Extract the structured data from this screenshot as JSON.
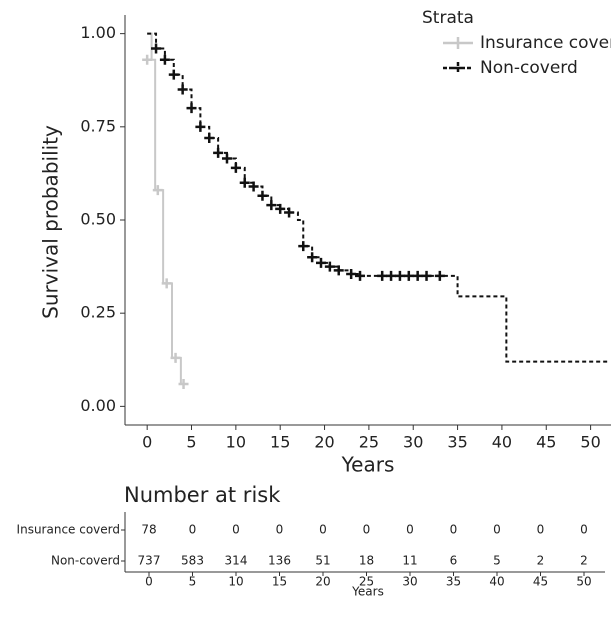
{
  "chart_data": {
    "type": "step",
    "y_label": "Survival probability",
    "x_label": "Years",
    "legend_title": "Strata",
    "legend": "top-right",
    "xlim": [
      -2.5,
      52.3
    ],
    "ylim": [
      -0.05,
      1.05
    ],
    "xticks": [
      0,
      5,
      10,
      15,
      20,
      25,
      30,
      35,
      40,
      45,
      50
    ],
    "yticks": [
      {
        "value": 0,
        "label": "0.00"
      },
      {
        "value": 0.25,
        "label": "0.25"
      },
      {
        "value": 0.5,
        "label": "0.50"
      },
      {
        "value": 0.75,
        "label": "0.75"
      },
      {
        "value": 1,
        "label": "1.00"
      }
    ],
    "series": [
      {
        "name": "Insurance coverd",
        "color": "#c8c8c8",
        "dashed": false,
        "x": [
          0,
          0.5,
          0.9,
          1.8,
          2.8,
          3.8
        ],
        "values": [
          1.0,
          0.93,
          0.58,
          0.33,
          0.13,
          0.06
        ],
        "censored_x": [
          0,
          1.2,
          2.2,
          3.2,
          4.1
        ],
        "censored_y": [
          0.93,
          0.58,
          0.33,
          0.13,
          0.06
        ]
      },
      {
        "name": "Non-coverd",
        "color": "#111111",
        "dashed": true,
        "x": [
          0,
          1,
          2,
          3,
          4,
          5,
          6,
          7,
          8,
          9,
          10,
          11,
          12,
          13,
          14,
          15,
          16,
          17,
          17.6,
          18.6,
          19.6,
          20.6,
          21.6,
          23,
          24,
          35,
          40.5,
          52
        ],
        "values": [
          1.0,
          0.96,
          0.93,
          0.89,
          0.85,
          0.8,
          0.75,
          0.72,
          0.68,
          0.665,
          0.64,
          0.6,
          0.59,
          0.565,
          0.54,
          0.53,
          0.52,
          0.5,
          0.43,
          0.4,
          0.385,
          0.375,
          0.365,
          0.355,
          0.35,
          0.295,
          0.12,
          0.12
        ],
        "censored_x": [
          1,
          2,
          3,
          4,
          5,
          6,
          7,
          8,
          9,
          10,
          11,
          12,
          13,
          14,
          15,
          16,
          17.6,
          18.6,
          19.6,
          20.6,
          21.6,
          23,
          24,
          26.5,
          27.5,
          28.5,
          29.5,
          30.5,
          31.5,
          33
        ],
        "censored_y": [
          0.96,
          0.93,
          0.89,
          0.85,
          0.8,
          0.75,
          0.72,
          0.68,
          0.665,
          0.64,
          0.6,
          0.59,
          0.565,
          0.54,
          0.53,
          0.52,
          0.43,
          0.4,
          0.385,
          0.375,
          0.365,
          0.355,
          0.35,
          0.35,
          0.35,
          0.35,
          0.35,
          0.35,
          0.35,
          0.35
        ]
      }
    ]
  },
  "risk_table": {
    "title": "Number at risk",
    "x_label": "Years",
    "times": [
      0,
      5,
      10,
      15,
      20,
      25,
      30,
      35,
      40,
      45,
      50
    ],
    "counts": [
      [
        78,
        0,
        0,
        0,
        0,
        0,
        0,
        0,
        0,
        0,
        0
      ],
      [
        737,
        583,
        314,
        136,
        51,
        18,
        11,
        6,
        5,
        2,
        2
      ]
    ]
  }
}
